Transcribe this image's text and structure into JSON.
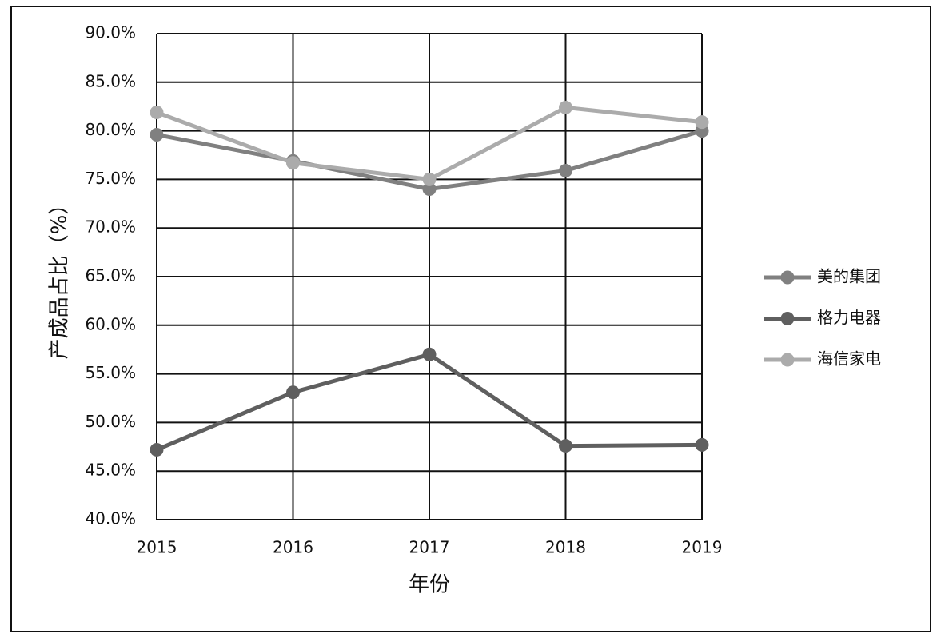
{
  "chart_data": {
    "type": "line",
    "x_label": "年份",
    "y_label": "产成品占比（%）",
    "categories": [
      "2015",
      "2016",
      "2017",
      "2018",
      "2019"
    ],
    "series": [
      {
        "name": "美的集团",
        "color": "#808080",
        "values": [
          79.6,
          76.9,
          74.0,
          75.9,
          80.0
        ]
      },
      {
        "name": "格力电器",
        "color": "#5f5f5f",
        "values": [
          47.2,
          53.1,
          57.0,
          47.6,
          47.7
        ]
      },
      {
        "name": "海信家电",
        "color": "#ababab",
        "values": [
          81.9,
          76.7,
          75.0,
          82.4,
          80.9
        ]
      }
    ],
    "ylim": [
      40,
      90
    ],
    "yticks": [
      {
        "value": 40,
        "label": "40.0%"
      },
      {
        "value": 45,
        "label": "45.0%"
      },
      {
        "value": 50,
        "label": "50.0%"
      },
      {
        "value": 55,
        "label": "55.0%"
      },
      {
        "value": 60,
        "label": "60.0%"
      },
      {
        "value": 65,
        "label": "65.0%"
      },
      {
        "value": 70,
        "label": "70.0%"
      },
      {
        "value": 75,
        "label": "75.0%"
      },
      {
        "value": 80,
        "label": "80.0%"
      },
      {
        "value": 85,
        "label": "85.0%"
      },
      {
        "value": 90,
        "label": "90.0%"
      }
    ],
    "grid": true,
    "legend": "right"
  }
}
